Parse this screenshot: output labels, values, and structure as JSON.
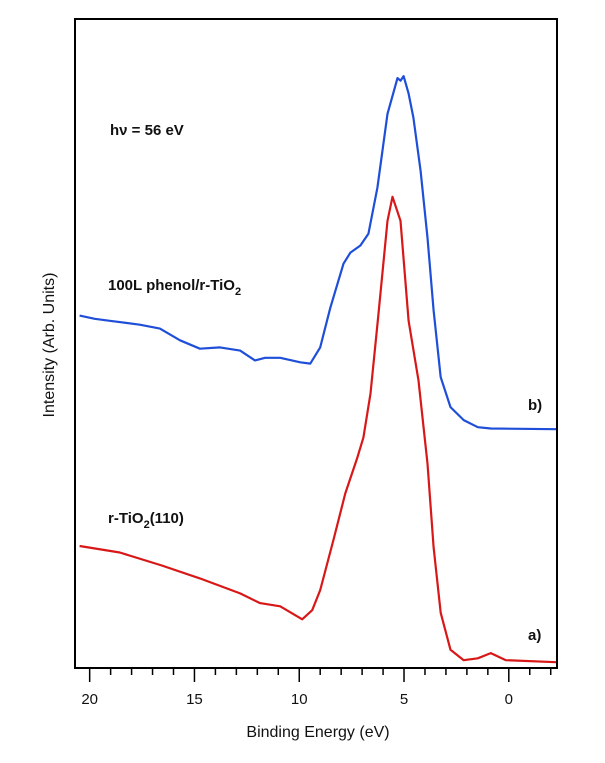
{
  "chart_data": {
    "type": "line",
    "title": "",
    "xlabel": "Binding Energy (eV)",
    "ylabel": "Intensity (Arb. Units)",
    "xlim": [
      20.7,
      -2.3
    ],
    "x_reversed": true,
    "ylim": [
      0,
      100
    ],
    "y_ticks_shown": false,
    "grid": false,
    "x_ticks": [
      20,
      15,
      10,
      5,
      0
    ],
    "x_tick_labels": [
      "20",
      "15",
      "10",
      "5",
      "0"
    ],
    "x_minor_tick_step": 1,
    "annotations": {
      "photon_energy": "hν = 56 eV",
      "label_b_prefix": "100L phenol/r-TiO",
      "label_b_sub": "2",
      "label_b_suffix": "",
      "label_b_tag": "b)",
      "label_a_prefix": "r-TiO",
      "label_a_sub": "2",
      "label_a_suffix": "(110)",
      "label_a_tag": "a)"
    },
    "series": [
      {
        "color": "#1f4fd8",
        "x": [
          20.48,
          19.76,
          19.04,
          17.61,
          16.65,
          15.69,
          14.74,
          13.78,
          12.82,
          12.11,
          11.63,
          10.91,
          9.95,
          9.47,
          9.0,
          8.52,
          7.89,
          7.56,
          7.08,
          6.7,
          6.27,
          5.79,
          5.31,
          5.17,
          5.02,
          4.78,
          4.55,
          4.21,
          3.88,
          3.59,
          3.25,
          2.78,
          2.15,
          1.48,
          0.86,
          -2.25
        ],
        "y": [
          54.3,
          53.8,
          53.5,
          52.9,
          52.3,
          50.5,
          49.2,
          49.4,
          48.9,
          47.4,
          47.8,
          47.8,
          47.1,
          46.9,
          49.4,
          55.5,
          62.3,
          64.0,
          65.1,
          66.9,
          74.0,
          85.4,
          90.9,
          90.5,
          91.2,
          88.5,
          84.8,
          76.6,
          66.3,
          55.1,
          44.8,
          40.2,
          38.2,
          37.1,
          36.9,
          36.8
        ]
      },
      {
        "color": "#d81818",
        "x": [
          20.48,
          18.56,
          16.56,
          14.74,
          12.82,
          11.87,
          10.91,
          9.86,
          9.38,
          9.0,
          8.37,
          7.8,
          7.22,
          6.94,
          6.6,
          6.22,
          5.79,
          5.55,
          5.17,
          4.78,
          4.31,
          3.88,
          3.59,
          3.25,
          2.78,
          2.15,
          1.48,
          0.86,
          0.14,
          -2.25
        ],
        "y": [
          18.8,
          17.8,
          15.8,
          13.8,
          11.5,
          10.0,
          9.5,
          7.5,
          8.9,
          12.0,
          19.7,
          26.9,
          32.5,
          35.5,
          42.3,
          54.6,
          68.9,
          72.6,
          68.9,
          53.5,
          44.3,
          31.5,
          18.6,
          8.5,
          2.8,
          1.2,
          1.5,
          2.3,
          1.2,
          0.9
        ]
      }
    ]
  }
}
